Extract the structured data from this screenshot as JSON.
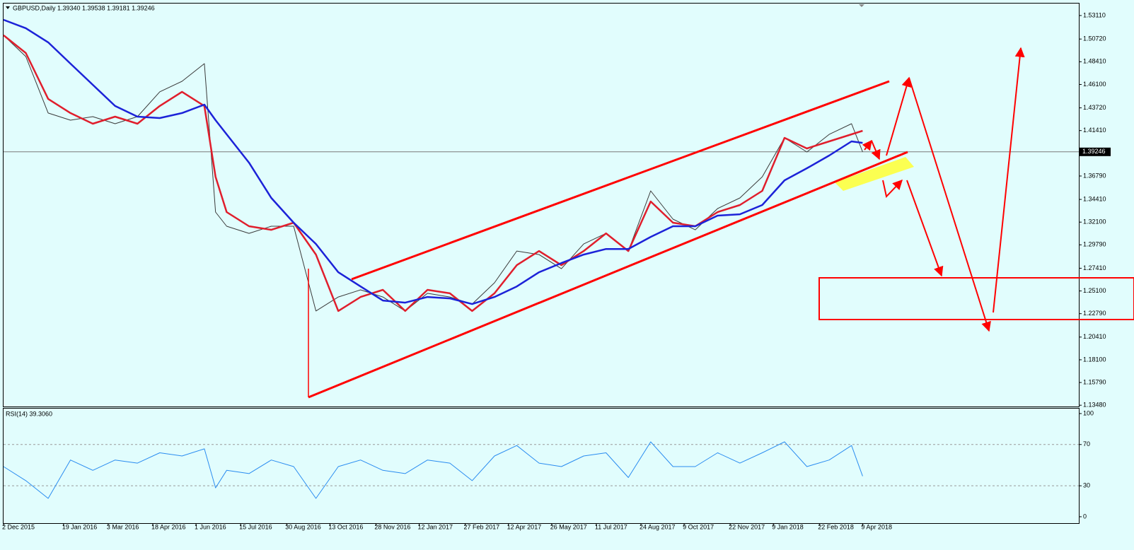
{
  "chart_data": [
    {
      "type": "line",
      "title": "GBPUSD,Daily  1.39340 1.39538 1.39181 1.39246",
      "x": [
        0,
        16,
        32,
        48,
        64,
        80,
        96,
        112,
        128,
        144,
        152,
        160,
        176,
        192,
        208,
        224,
        240,
        256,
        272,
        288,
        304,
        320,
        336,
        352,
        368,
        384,
        400,
        416,
        432,
        448,
        464,
        480,
        496,
        512,
        528,
        544,
        560,
        576,
        592,
        608,
        616
      ],
      "series": [
        {
          "color": "#3a3a3a",
          "values": [
            1.511,
            1.4894,
            1.4319,
            1.4247,
            1.4283,
            1.4211,
            1.4283,
            1.4535,
            1.4642,
            1.4822,
            1.3312,
            1.3168,
            1.3096,
            1.3168,
            1.3168,
            1.2306,
            1.2449,
            1.2521,
            1.2449,
            1.2306,
            1.2486,
            1.2449,
            1.2377,
            1.2593,
            1.2916,
            1.288,
            1.2736,
            1.2988,
            1.3096,
            1.2916,
            1.3528,
            1.324,
            1.3132,
            1.3348,
            1.3456,
            1.3671,
            1.4067,
            1.3923,
            1.4102,
            1.4211,
            1.3925
          ]
        },
        {
          "color": "#e01e2c",
          "values": [
            1.511,
            1.493,
            1.4463,
            1.4319,
            1.4211,
            1.4283,
            1.4211,
            1.4391,
            1.4535,
            1.4391,
            1.3671,
            1.3312,
            1.3168,
            1.3132,
            1.3204,
            1.288,
            1.2306,
            1.2449,
            1.2521,
            1.2306,
            1.2521,
            1.2486,
            1.2306,
            1.2486,
            1.2772,
            1.2916,
            1.2772,
            1.2916,
            1.3096,
            1.2916,
            1.342,
            1.3204,
            1.3168,
            1.3312,
            1.3384,
            1.3528,
            1.4067,
            1.3959,
            1.4031,
            1.4103,
            1.4139
          ]
        },
        {
          "color": "#1c22d8",
          "values": [
            1.5268,
            1.5182,
            1.5038,
            1.4822,
            1.4606,
            1.4391,
            1.4283,
            1.4268,
            1.4319,
            1.4405,
            1.4247,
            1.4103,
            1.3815,
            1.3456,
            1.3204,
            1.2988,
            1.27,
            1.2556,
            1.2413,
            1.2391,
            1.2449,
            1.2434,
            1.2377,
            1.2449,
            1.2556,
            1.27,
            1.2794,
            1.288,
            1.2937,
            1.2937,
            1.306,
            1.3168,
            1.3168,
            1.3276,
            1.329,
            1.3384,
            1.3635,
            1.3758,
            1.3887,
            1.4031,
            1.4016
          ]
        }
      ],
      "xlim": [
        0,
        771
      ],
      "ylim": [
        1.1335,
        1.5433
      ],
      "yticks": [
        {
          "value": 1.5311,
          "label": "1.53110"
        },
        {
          "value": 1.5072,
          "label": "1.50720"
        },
        {
          "value": 1.4841,
          "label": "1.48410"
        },
        {
          "value": 1.461,
          "label": "1.46100"
        },
        {
          "value": 1.4372,
          "label": "1.43720"
        },
        {
          "value": 1.4141,
          "label": "1.41410"
        },
        {
          "value": 1.3679,
          "label": "1.36790"
        },
        {
          "value": 1.3441,
          "label": "1.34410"
        },
        {
          "value": 1.321,
          "label": "1.32100"
        },
        {
          "value": 1.2979,
          "label": "1.29790"
        },
        {
          "value": 1.2741,
          "label": "1.27410"
        },
        {
          "value": 1.251,
          "label": "1.25100"
        },
        {
          "value": 1.2279,
          "label": "1.22790"
        },
        {
          "value": 1.2041,
          "label": "1.20410"
        },
        {
          "value": 1.181,
          "label": "1.18100"
        },
        {
          "value": 1.1579,
          "label": "1.15790"
        },
        {
          "value": 1.1348,
          "label": "1.13480"
        }
      ],
      "current_price": {
        "value": 1.39246,
        "label": "1.39246"
      }
    },
    {
      "type": "line",
      "title": "RSI(14) 39.3060",
      "x": [
        0,
        16,
        32,
        48,
        64,
        80,
        96,
        112,
        128,
        144,
        152,
        160,
        176,
        192,
        208,
        224,
        240,
        256,
        272,
        288,
        304,
        320,
        336,
        352,
        368,
        384,
        400,
        416,
        432,
        448,
        464,
        480,
        496,
        512,
        528,
        544,
        560,
        576,
        592,
        608,
        616
      ],
      "series": [
        {
          "color": "#2a8cf0",
          "values": [
            48.6,
            35,
            17.8,
            55,
            45,
            55,
            52,
            62,
            58.9,
            65.8,
            28,
            45,
            41.8,
            55,
            48.6,
            17.8,
            48.6,
            55,
            45,
            41.8,
            55,
            52,
            35,
            58.9,
            69,
            52,
            48.6,
            58.9,
            62,
            38,
            72.6,
            48.6,
            48.6,
            62,
            52,
            62,
            72.6,
            48.6,
            55,
            69,
            39.3
          ]
        }
      ],
      "xlim": [
        0,
        771
      ],
      "ylim": [
        -6.2,
        104.8
      ],
      "yticks": [
        100,
        70,
        30,
        0
      ],
      "levels": [
        70,
        30
      ],
      "xticks": [
        {
          "value": 0,
          "label": "2 Dec 2015"
        },
        {
          "value": 43,
          "label": "19 Jan 2016"
        },
        {
          "value": 75,
          "label": "3 Mar 2016"
        },
        {
          "value": 107,
          "label": "18 Apr 2016"
        },
        {
          "value": 138,
          "label": "1 Jun 2016"
        },
        {
          "value": 170,
          "label": "15 Jul 2016"
        },
        {
          "value": 203,
          "label": "30 Aug 2016"
        },
        {
          "value": 234,
          "label": "13 Oct 2016"
        },
        {
          "value": 267,
          "label": "28 Nov 2016"
        },
        {
          "value": 298,
          "label": "12 Jan 2017"
        },
        {
          "value": 331,
          "label": "27 Feb 2017"
        },
        {
          "value": 362,
          "label": "12 Apr 2017"
        },
        {
          "value": 393,
          "label": "26 May 2017"
        },
        {
          "value": 425,
          "label": "11 Jul 2017"
        },
        {
          "value": 457,
          "label": "24 Aug 2017"
        },
        {
          "value": 488,
          "label": "9 Oct 2017"
        },
        {
          "value": 521,
          "label": "22 Nov 2017"
        },
        {
          "value": 552,
          "label": "9 Jan 2018"
        },
        {
          "value": 585,
          "label": "22 Feb 2018"
        },
        {
          "value": 616,
          "label": "9 Apr 2018"
        }
      ]
    }
  ]
}
